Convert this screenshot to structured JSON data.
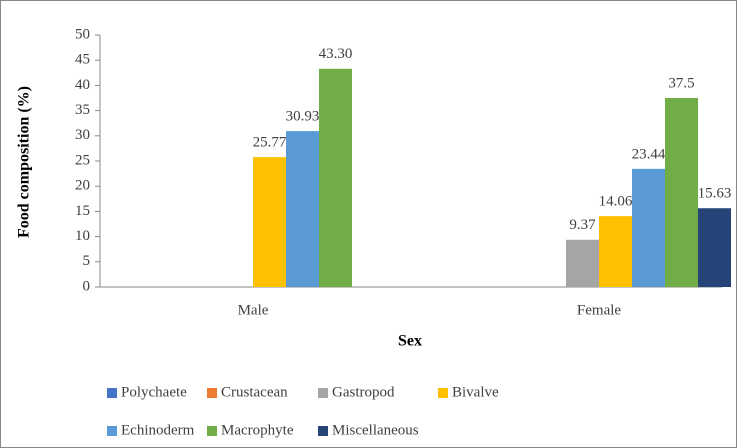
{
  "chart_data": {
    "type": "bar",
    "categories": [
      "Male",
      "Female"
    ],
    "x_label": "Sex",
    "y_label": "Food composition (%)",
    "ylim": [
      0,
      50
    ],
    "yticks": [
      0,
      5,
      10,
      15,
      20,
      25,
      30,
      35,
      40,
      45,
      50
    ],
    "grid": false,
    "legend": "bottom",
    "series": [
      {
        "name": "Polychaete",
        "color": "#4472c4",
        "values": [
          null,
          null
        ]
      },
      {
        "name": "Crustacean",
        "color": "#ed7d31",
        "values": [
          null,
          null
        ]
      },
      {
        "name": "Gastropod",
        "color": "#a5a5a5",
        "values": [
          null,
          9.37
        ]
      },
      {
        "name": "Bivalve",
        "color": "#ffc000",
        "values": [
          25.77,
          14.06
        ]
      },
      {
        "name": "Echinoderm",
        "color": "#5b9bd5",
        "values": [
          30.93,
          23.44
        ]
      },
      {
        "name": "Macrophyte",
        "color": "#70ad47",
        "values": [
          43.3,
          37.5
        ],
        "value_labels": [
          "43.30",
          "37.5"
        ]
      },
      {
        "name": "Miscellaneous",
        "color": "#264478",
        "values": [
          null,
          15.63
        ]
      }
    ]
  }
}
